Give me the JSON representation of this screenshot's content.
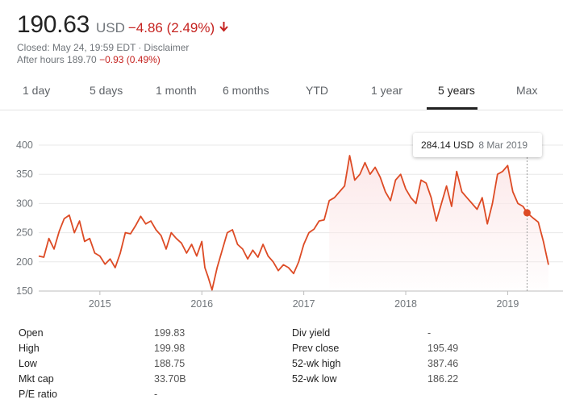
{
  "header": {
    "price": "190.63",
    "currency": "USD",
    "change": "−4.86 (2.49%)",
    "closed_label": "Closed: May 24, 19:59 EDT",
    "separator": "·",
    "disclaimer": "Disclaimer",
    "after_hours_label": "After hours 189.70",
    "after_hours_change": "−0.93 (0.49%)",
    "down_color": "#c5221f"
  },
  "tabs": [
    {
      "label": "1 day"
    },
    {
      "label": "5 days"
    },
    {
      "label": "1 month"
    },
    {
      "label": "6 months"
    },
    {
      "label": "YTD"
    },
    {
      "label": "1 year"
    },
    {
      "label": "5 years",
      "active": true
    },
    {
      "label": "Max"
    }
  ],
  "tooltip": {
    "value": "284.14 USD",
    "date": "8 Mar 2019"
  },
  "chart_data": {
    "type": "area",
    "x_tick_labels": [
      "2015",
      "2016",
      "2017",
      "2018",
      "2019"
    ],
    "y_tick_labels": [
      "400",
      "350",
      "300",
      "250",
      "200",
      "150"
    ],
    "ylim": [
      150,
      400
    ],
    "xlim": [
      2014.4,
      2019.4
    ],
    "grid": "horizontal",
    "line_color": "#dd4b25",
    "fill_color": "#fce8e9",
    "highlight_point": {
      "x": 2019.19,
      "y": 284.14
    },
    "series": [
      {
        "x": [
          2014.4,
          2014.45,
          2014.5,
          2014.55,
          2014.6,
          2014.65,
          2014.7,
          2014.75,
          2014.8,
          2014.85,
          2014.9,
          2014.95,
          2015.0,
          2015.05,
          2015.1,
          2015.15,
          2015.2,
          2015.25,
          2015.3,
          2015.35,
          2015.4,
          2015.45,
          2015.5,
          2015.55,
          2015.6,
          2015.65,
          2015.7,
          2015.75,
          2015.8,
          2015.85,
          2015.9,
          2015.95,
          2016.0,
          2016.03,
          2016.06,
          2016.1,
          2016.15,
          2016.2,
          2016.25,
          2016.3,
          2016.35,
          2016.4,
          2016.45,
          2016.5,
          2016.55,
          2016.6,
          2016.65,
          2016.7,
          2016.75,
          2016.8,
          2016.85,
          2016.9,
          2016.95,
          2017.0,
          2017.05,
          2017.1,
          2017.15,
          2017.2,
          2017.25,
          2017.3,
          2017.35,
          2017.4,
          2017.45,
          2017.5,
          2017.55,
          2017.6,
          2017.65,
          2017.7,
          2017.75,
          2017.8,
          2017.85,
          2017.9,
          2017.95,
          2018.0,
          2018.05,
          2018.1,
          2018.15,
          2018.2,
          2018.25,
          2018.3,
          2018.35,
          2018.4,
          2018.45,
          2018.5,
          2018.55,
          2018.6,
          2018.65,
          2018.7,
          2018.75,
          2018.8,
          2018.85,
          2018.9,
          2018.95,
          2019.0,
          2019.05,
          2019.1,
          2019.15,
          2019.19,
          2019.25,
          2019.3,
          2019.35,
          2019.4
        ],
        "y": [
          210,
          208,
          240,
          222,
          252,
          274,
          280,
          250,
          270,
          235,
          240,
          215,
          210,
          196,
          205,
          190,
          215,
          250,
          248,
          262,
          278,
          265,
          270,
          255,
          245,
          222,
          250,
          240,
          232,
          215,
          230,
          210,
          235,
          190,
          175,
          152,
          190,
          220,
          250,
          255,
          230,
          222,
          205,
          220,
          208,
          230,
          210,
          200,
          185,
          195,
          190,
          180,
          200,
          230,
          250,
          256,
          270,
          272,
          305,
          310,
          320,
          330,
          382,
          340,
          350,
          370,
          350,
          362,
          345,
          320,
          305,
          340,
          350,
          325,
          310,
          300,
          340,
          335,
          310,
          270,
          300,
          330,
          295,
          355,
          320,
          310,
          300,
          290,
          310,
          265,
          300,
          350,
          355,
          365,
          320,
          300,
          295,
          284.14,
          275,
          268,
          235,
          195
        ]
      }
    ]
  },
  "stats": {
    "left": [
      {
        "label": "Open",
        "value": "199.83"
      },
      {
        "label": "High",
        "value": "199.98"
      },
      {
        "label": "Low",
        "value": "188.75"
      },
      {
        "label": "Mkt cap",
        "value": "33.70B"
      },
      {
        "label": "P/E ratio",
        "value": "-"
      }
    ],
    "right": [
      {
        "label": "Div yield",
        "value": "-"
      },
      {
        "label": "Prev close",
        "value": "195.49"
      },
      {
        "label": "52-wk high",
        "value": "387.46"
      },
      {
        "label": "52-wk low",
        "value": "186.22"
      }
    ]
  }
}
